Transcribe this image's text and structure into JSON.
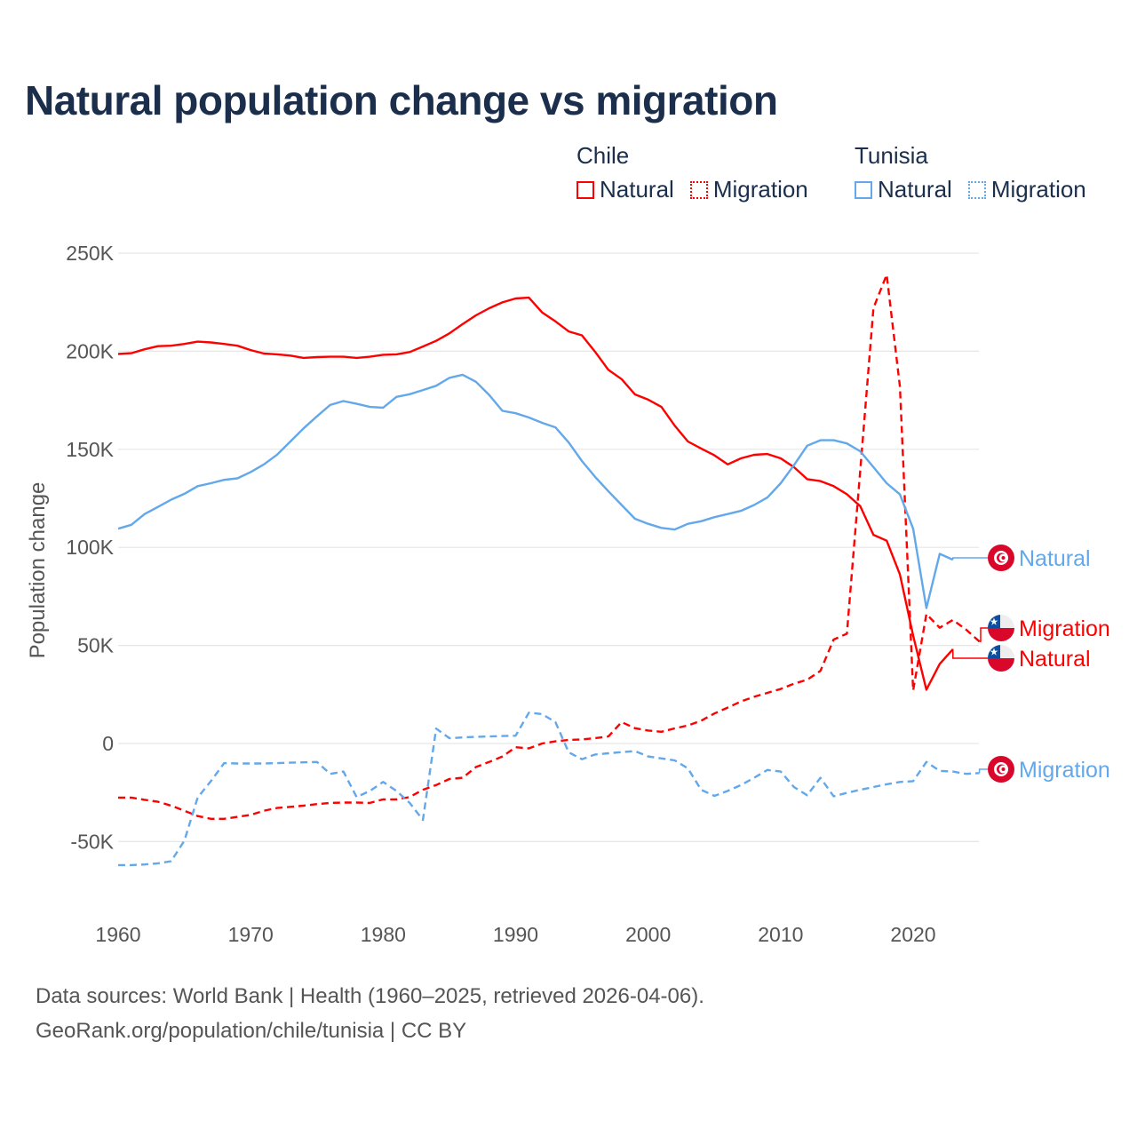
{
  "title": "Natural population change vs migration",
  "legend": {
    "groups": [
      {
        "country": "Chile",
        "items": [
          "Natural",
          "Migration"
        ]
      },
      {
        "country": "Tunisia",
        "items": [
          "Natural",
          "Migration"
        ]
      }
    ]
  },
  "footer": {
    "line1": "Data sources: World Bank | Health (1960–2025, retrieved 2026-04-06).",
    "line2": "GeoRank.org/population/chile/tunisia | CC BY"
  },
  "colors": {
    "chile": "#ff0000",
    "tunisia": "#62a8ea",
    "title": "#1b2f4d"
  },
  "chart_data": {
    "type": "line",
    "title": "Natural population change vs migration",
    "xlabel": "",
    "ylabel": "Population change",
    "xlim": [
      1960,
      2025
    ],
    "ylim": [
      -50000,
      250000
    ],
    "grid": true,
    "legend_placement": "top-right",
    "x_ticks": [
      1960,
      1970,
      1980,
      1990,
      2000,
      2010,
      2020
    ],
    "x_tick_labels": [
      "1960",
      "1970",
      "1980",
      "1990",
      "2000",
      "2010",
      "2020"
    ],
    "y_ticks": [
      -50000,
      0,
      50000,
      100000,
      150000,
      200000,
      250000
    ],
    "y_tick_labels": [
      "-50K",
      "0",
      "50K",
      "100K",
      "150K",
      "200K",
      "250K"
    ],
    "x_start": 1960,
    "series": [
      {
        "name": "Chile Natural",
        "country": "Chile",
        "kind": "Natural",
        "end_label": "Natural",
        "flag": "chile-flag",
        "color": "#ff0000",
        "dashed": false,
        "values_thousands": [
          198.6,
          199,
          201,
          202.6,
          202.8,
          203.7,
          204.9,
          204.5,
          203.7,
          202.8,
          200.6,
          198.8,
          198.4,
          197.8,
          196.6,
          197,
          197.2,
          197.2,
          196.6,
          197.2,
          198.2,
          198.4,
          199.6,
          202.4,
          205.3,
          209.1,
          213.8,
          218.3,
          221.9,
          224.9,
          226.9,
          227.3,
          219.8,
          215.2,
          210.1,
          208.1,
          199.7,
          190.5,
          185.8,
          178,
          175.3,
          171.6,
          162.1,
          154,
          150.4,
          146.9,
          142.3,
          145.4,
          147.2,
          147.6,
          145.4,
          140.9,
          134.8,
          133.8,
          131.2,
          127.1,
          121,
          106.4,
          103.4,
          86.2,
          55,
          27.4,
          40.6,
          48.1,
          null,
          null
        ]
      },
      {
        "name": "Chile Migration",
        "country": "Chile",
        "kind": "Migration",
        "end_label": "Migration",
        "flag": "chile-flag",
        "color": "#ff0000",
        "dashed": true,
        "values_thousands": [
          -27.6,
          -27.6,
          -28.7,
          -29.7,
          -31.7,
          -34.3,
          -37,
          -38.4,
          -38.4,
          -37.4,
          -36.4,
          -34.3,
          -32.9,
          -32.3,
          -31.7,
          -30.9,
          -30.3,
          -30.1,
          -30.1,
          -30.3,
          -28.5,
          -28.5,
          -27.3,
          -23.6,
          -21.2,
          -18.1,
          -17.5,
          -12,
          -9.4,
          -6.6,
          -1.9,
          -2.5,
          0,
          1.1,
          1.8,
          2.1,
          2.7,
          3.6,
          10.9,
          7.8,
          6.6,
          6,
          7.7,
          9.2,
          11.6,
          15.3,
          18.3,
          21.4,
          23.8,
          25.8,
          27.8,
          30.5,
          32.5,
          37,
          53,
          56,
          139,
          222,
          239,
          182,
          27,
          66,
          59,
          63,
          58,
          52
        ]
      },
      {
        "name": "Tunisia Natural",
        "country": "Tunisia",
        "kind": "Natural",
        "end_label": "Natural",
        "flag": "tunisia-flag",
        "color": "#62a8ea",
        "dashed": false,
        "values_thousands": [
          109.5,
          111.5,
          117,
          120.6,
          124.3,
          127.3,
          131.2,
          132.7,
          134.4,
          135.2,
          138.4,
          142.3,
          147.3,
          154,
          160.7,
          166.8,
          172.6,
          174.6,
          173.2,
          171.6,
          171.2,
          176.7,
          178.1,
          180.2,
          182.4,
          186.4,
          188,
          184.4,
          177.7,
          169.6,
          168.4,
          166.2,
          163.5,
          161.2,
          153.5,
          144,
          135.9,
          128.6,
          121.6,
          114.6,
          112,
          109.9,
          109.1,
          112,
          113.3,
          115.4,
          117,
          118.6,
          121.6,
          125.4,
          132.7,
          141.9,
          151.8,
          154.6,
          154.6,
          153,
          149,
          140.9,
          132.7,
          127,
          109.5,
          69,
          96.7,
          93.7,
          null,
          null
        ]
      },
      {
        "name": "Tunisia Migration",
        "country": "Tunisia",
        "kind": "Migration",
        "end_label": "Migration",
        "flag": "tunisia-flag",
        "color": "#62a8ea",
        "dashed": true,
        "values_thousands": [
          -62,
          -62,
          -61.7,
          -61.1,
          -60,
          -49.5,
          -27.6,
          -19.2,
          -10,
          -10.2,
          -10.2,
          -10.2,
          -10,
          -9.8,
          -9.6,
          -9.4,
          -15.5,
          -14.3,
          -27.3,
          -24.2,
          -19.6,
          -24.2,
          -30.3,
          -39,
          7.6,
          2.7,
          3.1,
          3.4,
          3.6,
          3.8,
          4,
          15.7,
          15,
          10.9,
          -4.5,
          -8,
          -5.6,
          -5,
          -4.4,
          -3.9,
          -6.6,
          -7.6,
          -8.6,
          -12.7,
          -23.6,
          -26.7,
          -24.2,
          -21.2,
          -17.5,
          -13.5,
          -14.3,
          -22.2,
          -26.4,
          -17.5,
          -26.9,
          -25.2,
          -23.6,
          -22.2,
          -20.8,
          -19.6,
          -19.2,
          -9.4,
          -14,
          -14.3,
          -15.5,
          -15.1
        ]
      }
    ]
  }
}
